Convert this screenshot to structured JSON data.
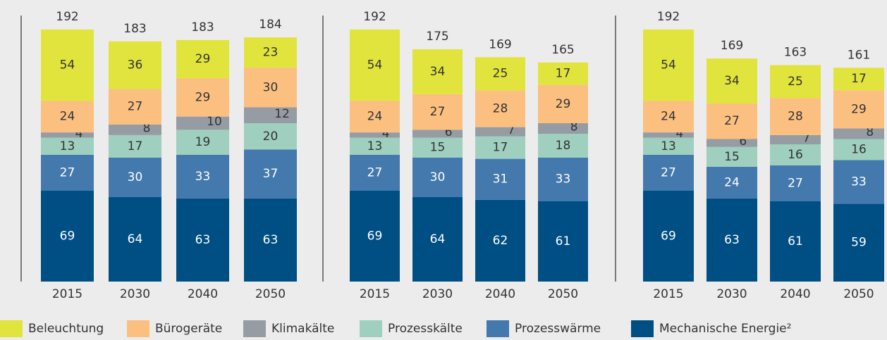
{
  "chart_data": [
    {
      "type": "bar",
      "stacked": true,
      "categories": [
        "2015",
        "2030",
        "2040",
        "2050"
      ],
      "totals": [
        192,
        183,
        183,
        184
      ],
      "series": [
        {
          "name": "Mechanische Energie²",
          "color": "#004f84",
          "values": [
            69,
            64,
            63,
            63
          ]
        },
        {
          "name": "Prozesswärme",
          "color": "#4479ae",
          "values": [
            27,
            30,
            33,
            37
          ]
        },
        {
          "name": "Prozesskälte",
          "color": "#9ecfbf",
          "values": [
            13,
            17,
            19,
            20
          ]
        },
        {
          "name": "Klimakälte",
          "color": "#959ca3",
          "values": [
            4,
            8,
            10,
            12
          ]
        },
        {
          "name": "Bürogeräte",
          "color": "#fbbf80",
          "values": [
            24,
            27,
            29,
            30
          ]
        },
        {
          "name": "Beleuchtung",
          "color": "#e1e43c",
          "values": [
            54,
            36,
            29,
            23
          ]
        }
      ]
    },
    {
      "type": "bar",
      "stacked": true,
      "categories": [
        "2015",
        "2030",
        "2040",
        "2050"
      ],
      "totals": [
        192,
        175,
        169,
        165
      ],
      "series": [
        {
          "values": [
            69,
            64,
            62,
            61
          ]
        },
        {
          "values": [
            27,
            30,
            31,
            33
          ]
        },
        {
          "values": [
            13,
            15,
            17,
            18
          ]
        },
        {
          "values": [
            4,
            6,
            7,
            8
          ]
        },
        {
          "values": [
            24,
            27,
            28,
            29
          ]
        },
        {
          "values": [
            54,
            34,
            25,
            17
          ]
        }
      ]
    },
    {
      "type": "bar",
      "stacked": true,
      "categories": [
        "2015",
        "2030",
        "2040",
        "2050"
      ],
      "totals": [
        192,
        169,
        163,
        161
      ],
      "series": [
        {
          "values": [
            69,
            63,
            61,
            59
          ]
        },
        {
          "values": [
            27,
            24,
            27,
            33
          ]
        },
        {
          "values": [
            13,
            15,
            16,
            16
          ]
        },
        {
          "values": [
            4,
            6,
            7,
            8
          ]
        },
        {
          "values": [
            24,
            27,
            28,
            29
          ]
        },
        {
          "values": [
            54,
            34,
            25,
            17
          ]
        }
      ]
    }
  ]
}
